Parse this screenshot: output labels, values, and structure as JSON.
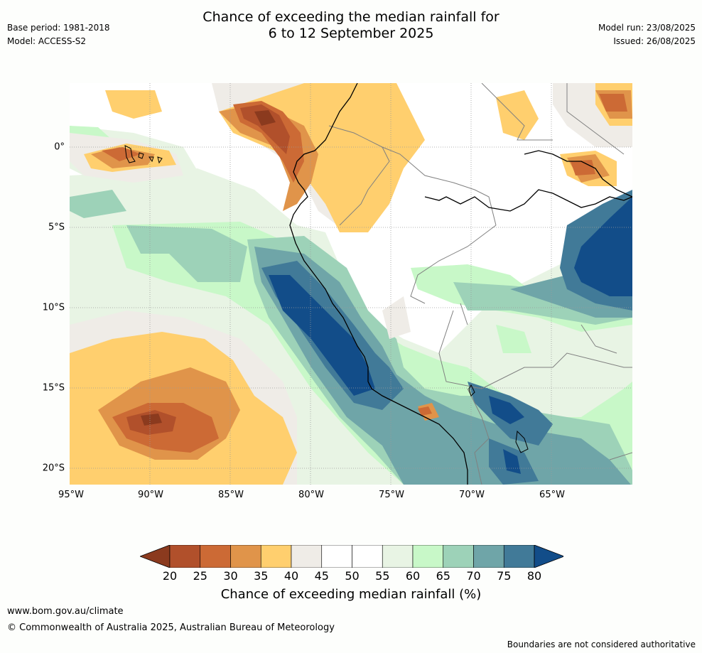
{
  "header": {
    "title_line1": "Chance of exceeding the median rainfall for",
    "title_line2": "6 to 12 September 2025",
    "base_period": "Base period: 1981-2018",
    "model": "Model: ACCESS-S2",
    "model_run": "Model run: 23/08/2025",
    "issued": "Issued: 26/08/2025"
  },
  "map": {
    "region": "Western South America",
    "longitude_ticks": [
      "95°W",
      "90°W",
      "85°W",
      "80°W",
      "75°W",
      "70°W",
      "65°W"
    ],
    "latitude_ticks": [
      "0°",
      "5°S",
      "10°S",
      "15°S",
      "20°S"
    ],
    "gridlines": true,
    "features": [
      "coastline",
      "country-boundaries",
      "lake-titicaca",
      "galapagos-islands"
    ]
  },
  "colorbar": {
    "tick_labels": [
      "20",
      "25",
      "30",
      "35",
      "40",
      "45",
      "50",
      "55",
      "60",
      "65",
      "70",
      "75",
      "80"
    ],
    "label": "Chance of exceeding median rainfall (%)",
    "extend": "both",
    "colors": [
      "#8b3a1e",
      "#b1502b",
      "#cc6a35",
      "#e0944a",
      "#ffcf6e",
      "#efece7",
      "#ffffff",
      "#ffffff",
      "#e8f4e4",
      "#c8f8c8",
      "#9dd2b8",
      "#6fa5a8",
      "#417a98",
      "#124d89"
    ]
  },
  "footer": {
    "url": "www.bom.gov.au/climate",
    "copyright": "© Commonwealth of Australia 2025, Australian Bureau of Meteorology",
    "disclaimer": "Boundaries are not considered authoritative"
  }
}
